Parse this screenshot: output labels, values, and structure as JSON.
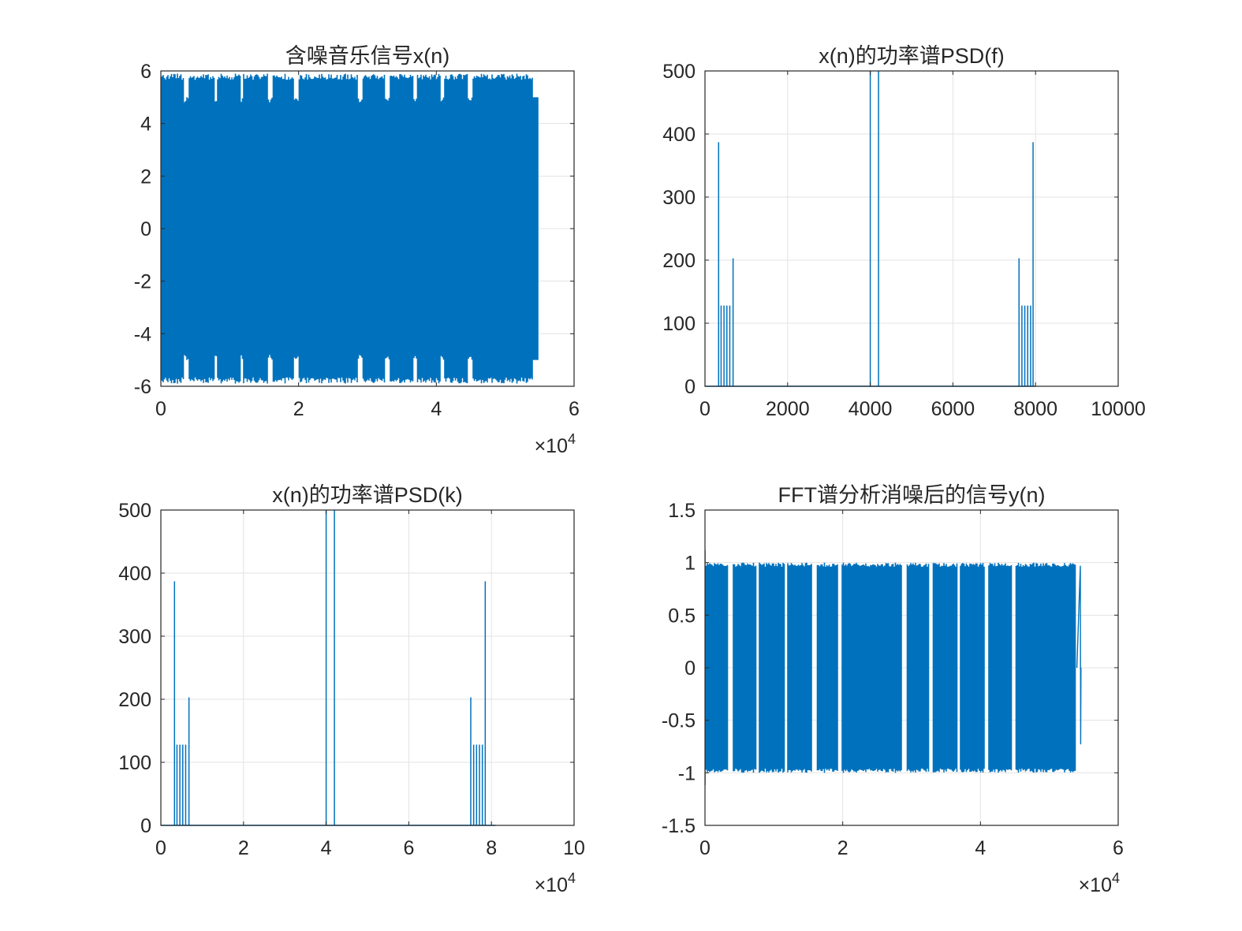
{
  "colors": {
    "series": "#0072BD",
    "grid": "#e3e3e3",
    "axis": "#262626"
  },
  "chart_data": [
    {
      "id": "p1",
      "type": "line",
      "title": "含噪音乐信号x(n)",
      "xlabel": "",
      "ylabel": "",
      "xlim": [
        0,
        60000
      ],
      "ylim": [
        -6,
        6
      ],
      "xticks": [
        0,
        20000,
        40000,
        60000
      ],
      "xtick_labels": [
        "0",
        "2",
        "4",
        "6"
      ],
      "yticks": [
        -6,
        -4,
        -2,
        0,
        2,
        4,
        6
      ],
      "ytick_labels": [
        "-6",
        "-4",
        "-2",
        "0",
        "2",
        "4",
        "6"
      ],
      "exponent_label": "×10",
      "exponent_power": "4",
      "grid": true,
      "series": [
        {
          "kind": "dense-oscillation",
          "x_range": [
            0,
            54000
          ],
          "amplitude": 5.9,
          "tail_x_range": [
            54000,
            54700
          ],
          "tail_amplitude": 5.0,
          "gaps": [
            [
              3400,
              4000
            ],
            [
              7800,
              8200
            ],
            [
              11600,
              12000
            ],
            [
              15600,
              16200
            ],
            [
              19400,
              20000
            ],
            [
              28600,
              29200
            ],
            [
              32600,
              33200
            ],
            [
              36600,
              37200
            ],
            [
              40600,
              41200
            ],
            [
              44600,
              45200
            ]
          ],
          "gap_amplitude": 5.0
        }
      ]
    },
    {
      "id": "p2",
      "type": "line",
      "title": "x(n)的功率谱PSD(f)",
      "xlabel": "",
      "ylabel": "",
      "xlim": [
        0,
        10000
      ],
      "ylim": [
        0,
        500
      ],
      "xticks": [
        0,
        2000,
        4000,
        6000,
        8000,
        10000
      ],
      "xtick_labels": [
        "0",
        "2000",
        "4000",
        "6000",
        "8000",
        "10000"
      ],
      "yticks": [
        0,
        100,
        200,
        300,
        400,
        500
      ],
      "ytick_labels": [
        "0",
        "100",
        "200",
        "300",
        "400",
        "500"
      ],
      "grid": true,
      "series": [
        {
          "kind": "spikes",
          "x_max": 8000,
          "spikes": [
            [
              330,
              387
            ],
            [
              390,
              128
            ],
            [
              460,
              128
            ],
            [
              530,
              128
            ],
            [
              600,
              128
            ],
            [
              680,
              203
            ],
            [
              4000,
              500
            ],
            [
              4200,
              500
            ],
            [
              7600,
              203
            ],
            [
              7670,
              128
            ],
            [
              7740,
              128
            ],
            [
              7810,
              128
            ],
            [
              7880,
              128
            ],
            [
              7940,
              387
            ]
          ]
        }
      ]
    },
    {
      "id": "p3",
      "type": "line",
      "title": "x(n)的功率谱PSD(k)",
      "xlabel": "",
      "ylabel": "",
      "xlim": [
        0,
        100000
      ],
      "ylim": [
        0,
        500
      ],
      "xticks": [
        0,
        20000,
        40000,
        60000,
        80000,
        100000
      ],
      "xtick_labels": [
        "0",
        "2",
        "4",
        "6",
        "8",
        "10"
      ],
      "yticks": [
        0,
        100,
        200,
        300,
        400,
        500
      ],
      "ytick_labels": [
        "0",
        "100",
        "200",
        "300",
        "400",
        "500"
      ],
      "exponent_label": "×10",
      "exponent_power": "4",
      "grid": true,
      "series": [
        {
          "kind": "spikes",
          "x_max": 81000,
          "spikes": [
            [
              3300,
              387
            ],
            [
              3900,
              128
            ],
            [
              4600,
              128
            ],
            [
              5300,
              128
            ],
            [
              6000,
              128
            ],
            [
              6800,
              203
            ],
            [
              40000,
              500
            ],
            [
              42000,
              500
            ],
            [
              75000,
              203
            ],
            [
              75700,
              128
            ],
            [
              76400,
              128
            ],
            [
              77100,
              128
            ],
            [
              77800,
              128
            ],
            [
              78500,
              387
            ]
          ]
        }
      ]
    },
    {
      "id": "p4",
      "type": "line",
      "title": "FFT谱分析消噪后的信号y(n)",
      "xlabel": "",
      "ylabel": "",
      "xlim": [
        0,
        60000
      ],
      "ylim": [
        -1.5,
        1.5
      ],
      "xticks": [
        0,
        20000,
        40000,
        60000
      ],
      "xtick_labels": [
        "0",
        "2",
        "4",
        "6"
      ],
      "yticks": [
        -1.5,
        -1,
        -0.5,
        0,
        0.5,
        1,
        1.5
      ],
      "ytick_labels": [
        "-1.5",
        "-1",
        "-0.5",
        "0",
        "0.5",
        "1",
        "1.5"
      ],
      "exponent_label": "×10",
      "exponent_power": "4",
      "grid": true,
      "series": [
        {
          "kind": "dense-oscillation",
          "x_range": [
            0,
            53800
          ],
          "amplitude": 1.0,
          "start_peak": 1.15,
          "gaps": [
            [
              3400,
              4000
            ],
            [
              7400,
              7800
            ],
            [
              11600,
              12000
            ],
            [
              15600,
              16200
            ],
            [
              19400,
              19800
            ],
            [
              28600,
              29200
            ],
            [
              32600,
              33000
            ],
            [
              36600,
              37000
            ],
            [
              40600,
              41200
            ],
            [
              44600,
              45000
            ]
          ],
          "gap_amplitude": 0.0,
          "tail": [
            [
              54000,
              0.0
            ],
            [
              54500,
              0.97
            ],
            [
              54550,
              -0.73
            ],
            [
              54600,
              0.0
            ]
          ]
        }
      ]
    }
  ]
}
